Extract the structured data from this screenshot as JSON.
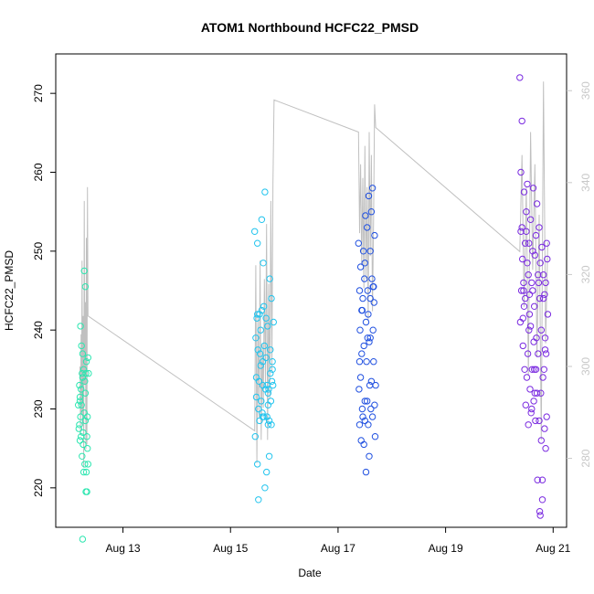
{
  "chart_data": {
    "type": "scatter",
    "title": "ATOM1 Northbound HCFC22_PMSD",
    "xlabel": "Date",
    "ylabel": "HCFC22_PMSD",
    "x_unit": "days",
    "xlim": [
      "2024-08-11T18:00",
      "2024-08-21T06:00"
    ],
    "ylim": [
      215,
      275
    ],
    "y2lim": [
      265,
      368
    ],
    "x_ticks": [
      {
        "value": "2024-08-13",
        "label": "Aug 13"
      },
      {
        "value": "2024-08-15",
        "label": "Aug 15"
      },
      {
        "value": "2024-08-17",
        "label": "Aug 17"
      },
      {
        "value": "2024-08-19",
        "label": "Aug 19"
      },
      {
        "value": "2024-08-21",
        "label": "Aug 21"
      }
    ],
    "y_ticks": [
      220,
      230,
      240,
      250,
      260,
      270
    ],
    "y2_ticks": [
      280,
      300,
      320,
      340,
      360
    ],
    "grid": false,
    "legend": "none",
    "line_color": "#c0c0c0",
    "right_axis_color": "#c8c8c8",
    "series": [
      {
        "color": "#2de6b0",
        "x": [
          12.17,
          12.18,
          12.19,
          12.19,
          12.2,
          12.2,
          12.21,
          12.21,
          12.22,
          12.22,
          12.23,
          12.23,
          12.24,
          12.24,
          12.25,
          12.25,
          12.26,
          12.26,
          12.27,
          12.27,
          12.28,
          12.28,
          12.29,
          12.29,
          12.3,
          12.3,
          12.31,
          12.31,
          12.32,
          12.32,
          12.33,
          12.33,
          12.34,
          12.34,
          12.35,
          12.35,
          12.36,
          12.2,
          12.25,
          12.3
        ],
        "y": [
          230.5,
          227.5,
          233,
          228,
          231.5,
          226,
          240.5,
          229,
          232.5,
          226.5,
          238,
          230.5,
          234.5,
          224,
          234,
          237,
          227,
          225.5,
          235,
          222,
          229.5,
          247.5,
          233.5,
          223,
          228.5,
          245.5,
          234.5,
          219.5,
          236,
          222,
          226.5,
          219.5,
          229,
          225,
          236.5,
          223,
          234.5,
          231,
          213.5,
          232
        ]
      },
      {
        "color": "#22c4ee",
        "x": [
          15.45,
          15.46,
          15.47,
          15.48,
          15.48,
          15.49,
          15.5,
          15.5,
          15.51,
          15.52,
          15.52,
          15.53,
          15.54,
          15.54,
          15.55,
          15.56,
          15.56,
          15.57,
          15.58,
          15.58,
          15.59,
          15.6,
          15.6,
          15.61,
          15.62,
          15.62,
          15.63,
          15.64,
          15.64,
          15.65,
          15.66,
          15.66,
          15.67,
          15.68,
          15.68,
          15.69,
          15.7,
          15.7,
          15.71,
          15.72,
          15.72,
          15.73,
          15.74,
          15.74,
          15.75,
          15.76,
          15.76,
          15.77,
          15.78,
          15.78,
          15.79,
          15.8,
          15.5,
          15.6,
          15.7
        ],
        "y": [
          252.5,
          226.5,
          239,
          231.5,
          234,
          241.5,
          251,
          223,
          237.5,
          230,
          218.5,
          233.5,
          242,
          228.5,
          237,
          235.5,
          240,
          231,
          242.5,
          254,
          229.5,
          233,
          236,
          248.5,
          243,
          229,
          238,
          220,
          257.5,
          232.5,
          236.5,
          241.5,
          222,
          229,
          233,
          240.5,
          228,
          230.5,
          232.5,
          224,
          228.5,
          246.5,
          234.5,
          237.5,
          231,
          244,
          228,
          233.5,
          235,
          236,
          233,
          241,
          242,
          229,
          232
        ]
      },
      {
        "color": "#2050e0",
        "x": [
          17.38,
          17.39,
          17.4,
          17.4,
          17.41,
          17.42,
          17.42,
          17.43,
          17.44,
          17.44,
          17.45,
          17.46,
          17.46,
          17.47,
          17.48,
          17.48,
          17.49,
          17.5,
          17.5,
          17.51,
          17.52,
          17.52,
          17.53,
          17.54,
          17.54,
          17.55,
          17.56,
          17.56,
          17.57,
          17.58,
          17.58,
          17.59,
          17.6,
          17.6,
          17.61,
          17.62,
          17.62,
          17.63,
          17.64,
          17.64,
          17.65,
          17.66,
          17.66,
          17.67,
          17.68,
          17.68,
          17.69,
          17.7,
          17.4,
          17.5,
          17.6,
          17.45,
          17.55,
          17.65
        ],
        "y": [
          251,
          232.5,
          245,
          228,
          240,
          234,
          248,
          226,
          242.5,
          237,
          230,
          244,
          229,
          250,
          225.5,
          238,
          246.5,
          228.5,
          231,
          254.5,
          241,
          222,
          236,
          253,
          231,
          245,
          228,
          242,
          257,
          224,
          238.5,
          233,
          250,
          244,
          230,
          255,
          233.5,
          246.5,
          258,
          229,
          240,
          245.5,
          236,
          243.5,
          230.5,
          252,
          226.5,
          233,
          236,
          248.5,
          239,
          242.5,
          239,
          245.5
        ]
      },
      {
        "color": "#7a2ae0",
        "x": [
          20.38,
          20.39,
          20.4,
          20.4,
          20.41,
          20.42,
          20.42,
          20.43,
          20.44,
          20.44,
          20.45,
          20.46,
          20.46,
          20.47,
          20.48,
          20.48,
          20.49,
          20.5,
          20.5,
          20.51,
          20.52,
          20.52,
          20.53,
          20.54,
          20.54,
          20.55,
          20.56,
          20.56,
          20.57,
          20.58,
          20.58,
          20.59,
          20.6,
          20.6,
          20.61,
          20.62,
          20.62,
          20.63,
          20.64,
          20.64,
          20.65,
          20.66,
          20.66,
          20.67,
          20.68,
          20.68,
          20.69,
          20.7,
          20.7,
          20.71,
          20.72,
          20.72,
          20.73,
          20.74,
          20.74,
          20.75,
          20.76,
          20.76,
          20.77,
          20.78,
          20.78,
          20.79,
          20.8,
          20.8,
          20.81,
          20.82,
          20.82,
          20.83,
          20.84,
          20.84,
          20.85,
          20.86,
          20.86,
          20.87,
          20.88,
          20.88,
          20.89,
          20.9,
          20.45,
          20.55,
          20.65,
          20.75,
          20.85
        ],
        "y": [
          272,
          241,
          252.5,
          260,
          245,
          253,
          266.5,
          249,
          241.5,
          238,
          246,
          257.5,
          243,
          235,
          251,
          244,
          230.5,
          252.5,
          255,
          234,
          248.5,
          258.5,
          237,
          247,
          228,
          251,
          244.5,
          242,
          232.5,
          240.5,
          254,
          229.5,
          246,
          230,
          235,
          245,
          250,
          258,
          238.5,
          231,
          243,
          249.5,
          232,
          228.5,
          235,
          252,
          239,
          256,
          232,
          221,
          237,
          247,
          246,
          228.5,
          253,
          217,
          216.5,
          248.5,
          232,
          226,
          240,
          250.5,
          221,
          218.5,
          234,
          247,
          244,
          235,
          227.5,
          244.5,
          237.5,
          225,
          246,
          237,
          229,
          251,
          249,
          242,
          245,
          240,
          235,
          244,
          239
        ]
      }
    ],
    "line": {
      "x": [
        12.2,
        12.21,
        12.22,
        12.23,
        12.24,
        12.25,
        12.26,
        12.27,
        12.28,
        12.29,
        12.3,
        12.31,
        12.32,
        12.33,
        12.34,
        12.35,
        15.45,
        15.47,
        15.49,
        15.51,
        15.53,
        15.55,
        15.57,
        15.59,
        15.61,
        15.63,
        15.65,
        15.67,
        15.69,
        15.71,
        15.73,
        15.75,
        15.77,
        15.79,
        15.81,
        17.38,
        17.4,
        17.42,
        17.44,
        17.46,
        17.48,
        17.5,
        17.52,
        17.54,
        17.56,
        17.58,
        17.6,
        17.62,
        17.64,
        17.66,
        17.68,
        17.7,
        20.38,
        20.42,
        20.46,
        20.5,
        20.54,
        20.58,
        20.62,
        20.66,
        20.7,
        20.74,
        20.78,
        20.82,
        20.86,
        20.9
      ],
      "y": [
        300,
        285,
        307,
        290,
        323,
        287,
        311,
        278,
        336,
        296,
        314,
        282,
        328,
        283,
        339,
        311,
        286,
        322,
        279,
        311,
        289,
        323,
        284,
        305,
        291,
        319,
        296,
        331,
        284,
        318,
        293,
        336,
        299,
        340,
        358,
        351,
        329,
        344,
        322,
        341,
        317,
        348,
        319,
        339,
        310,
        351,
        324,
        346,
        312,
        332,
        357,
        352,
        325,
        346,
        313,
        339,
        298,
        351,
        321,
        344,
        302,
        333,
        284,
        362,
        305,
        327
      ]
    }
  }
}
